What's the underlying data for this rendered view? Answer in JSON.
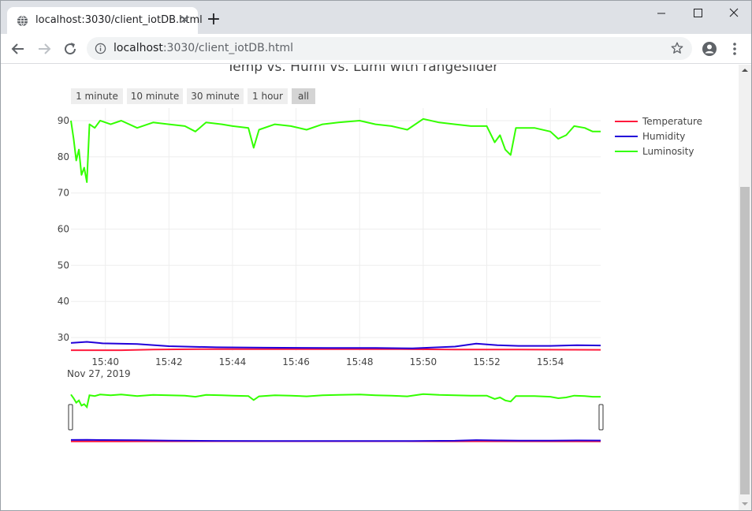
{
  "browser": {
    "tab_title": "localhost:3030/client_iotDB.html",
    "tab_close": "✕",
    "new_tab": "+",
    "url_host": "localhost",
    "url_rest": ":3030/client_iotDB.html",
    "favicon": "globe-icon",
    "icons": [
      "back-arrow-icon",
      "forward-arrow-icon",
      "reload-icon",
      "info-icon",
      "star-icon",
      "profile-icon",
      "kebab-menu-icon"
    ]
  },
  "chart_data": {
    "type": "line",
    "title": "Temp vs. Humi vs. Lumi with rangeslider",
    "xlabel": "",
    "ylabel": "",
    "date_label": "Nov 27, 2019",
    "range_buttons": [
      "1 minute",
      "10 minute",
      "30 minute",
      "1 hour",
      "all"
    ],
    "active_button": "all",
    "x_tick_labels": [
      "15:40",
      "15:42",
      "15:44",
      "15:46",
      "15:48",
      "15:50",
      "15:52",
      "15:54"
    ],
    "x_range": [
      "15:38:55",
      "15:55:35"
    ],
    "y_ticks": [
      30,
      40,
      50,
      60,
      70,
      80,
      90
    ],
    "ylim": [
      26.3,
      93.5
    ],
    "grid": true,
    "legend_position": "right",
    "series": [
      {
        "name": "Temperature",
        "color": "#ff1a3c",
        "points": [
          [
            "15:38:55",
            26.5
          ],
          [
            "15:40:30",
            26.5
          ],
          [
            "15:41:30",
            26.7
          ],
          [
            "15:43:00",
            26.8
          ],
          [
            "15:45:00",
            26.8
          ],
          [
            "15:47:00",
            26.8
          ],
          [
            "15:49:00",
            26.8
          ],
          [
            "15:51:00",
            26.7
          ],
          [
            "15:53:00",
            26.7
          ],
          [
            "15:55:35",
            26.6
          ]
        ]
      },
      {
        "name": "Humidity",
        "color": "#2200d9",
        "points": [
          [
            "15:38:55",
            28.5
          ],
          [
            "15:39:25",
            28.8
          ],
          [
            "15:39:55",
            28.4
          ],
          [
            "15:41:00",
            28.2
          ],
          [
            "15:42:00",
            27.6
          ],
          [
            "15:43:30",
            27.3
          ],
          [
            "15:45:00",
            27.2
          ],
          [
            "15:47:00",
            27.1
          ],
          [
            "15:48:30",
            27.1
          ],
          [
            "15:49:40",
            27.0
          ],
          [
            "15:51:00",
            27.5
          ],
          [
            "15:51:40",
            28.3
          ],
          [
            "15:52:20",
            27.9
          ],
          [
            "15:53:00",
            27.7
          ],
          [
            "15:54:00",
            27.7
          ],
          [
            "15:54:50",
            27.9
          ],
          [
            "15:55:35",
            27.8
          ]
        ]
      },
      {
        "name": "Luminosity",
        "color": "#33ff00",
        "points": [
          [
            "15:38:55",
            90.0
          ],
          [
            "15:39:00",
            85.0
          ],
          [
            "15:39:05",
            79.0
          ],
          [
            "15:39:10",
            82.0
          ],
          [
            "15:39:15",
            75.0
          ],
          [
            "15:39:20",
            77.0
          ],
          [
            "15:39:25",
            73.0
          ],
          [
            "15:39:30",
            89.0
          ],
          [
            "15:39:40",
            88.0
          ],
          [
            "15:39:50",
            90.0
          ],
          [
            "15:40:10",
            89.0
          ],
          [
            "15:40:30",
            90.0
          ],
          [
            "15:41:00",
            88.0
          ],
          [
            "15:41:30",
            89.5
          ],
          [
            "15:42:00",
            89.0
          ],
          [
            "15:42:30",
            88.5
          ],
          [
            "15:42:50",
            87.0
          ],
          [
            "15:43:10",
            89.5
          ],
          [
            "15:43:40",
            89.0
          ],
          [
            "15:44:00",
            88.5
          ],
          [
            "15:44:30",
            88.0
          ],
          [
            "15:44:40",
            82.5
          ],
          [
            "15:44:50",
            87.5
          ],
          [
            "15:45:20",
            89.0
          ],
          [
            "15:45:50",
            88.5
          ],
          [
            "15:46:20",
            87.5
          ],
          [
            "15:46:50",
            89.0
          ],
          [
            "15:47:20",
            89.5
          ],
          [
            "15:48:00",
            90.0
          ],
          [
            "15:48:30",
            89.0
          ],
          [
            "15:49:00",
            88.5
          ],
          [
            "15:49:30",
            87.5
          ],
          [
            "15:50:00",
            90.5
          ],
          [
            "15:50:30",
            89.5
          ],
          [
            "15:51:00",
            89.0
          ],
          [
            "15:51:30",
            88.5
          ],
          [
            "15:52:00",
            88.5
          ],
          [
            "15:52:15",
            84.0
          ],
          [
            "15:52:25",
            86.0
          ],
          [
            "15:52:35",
            82.0
          ],
          [
            "15:52:45",
            80.5
          ],
          [
            "15:52:55",
            88.0
          ],
          [
            "15:53:30",
            88.0
          ],
          [
            "15:54:00",
            87.0
          ],
          [
            "15:54:15",
            85.0
          ],
          [
            "15:54:30",
            86.0
          ],
          [
            "15:54:45",
            88.5
          ],
          [
            "15:55:05",
            88.0
          ],
          [
            "15:55:20",
            87.0
          ],
          [
            "15:55:35",
            87.0
          ]
        ]
      }
    ]
  }
}
